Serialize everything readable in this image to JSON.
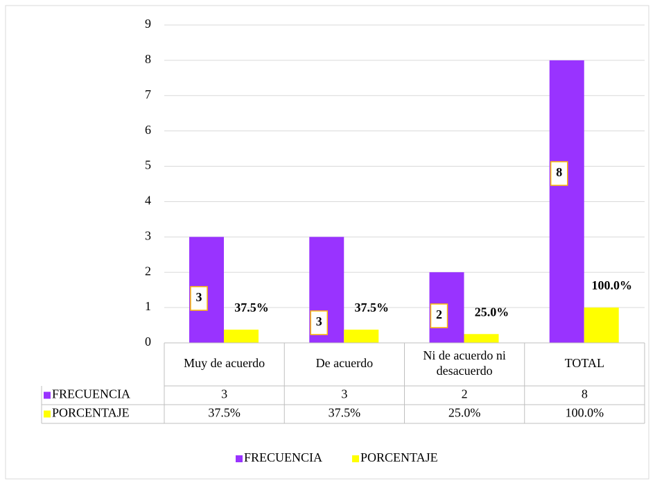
{
  "chart_data": {
    "type": "bar",
    "categories": [
      "Muy de acuerdo",
      "De acuerdo",
      "Ni de acuerdo ni desacuerdo",
      "TOTAL"
    ],
    "series": [
      {
        "name": "FRECUENCIA",
        "color": "#9933ff",
        "values": [
          3,
          3,
          2,
          8
        ]
      },
      {
        "name": "PORCENTAJE",
        "color": "#ffff00",
        "values": [
          0.375,
          0.375,
          0.25,
          1
        ],
        "value_labels": [
          "37.5%",
          "37.5%",
          "25.0%",
          "100.0%"
        ]
      }
    ],
    "ylim": [
      0,
      9
    ],
    "yticks": [
      0,
      1,
      2,
      3,
      4,
      5,
      6,
      7,
      8,
      9
    ],
    "grid": true,
    "legend": "bottom"
  }
}
